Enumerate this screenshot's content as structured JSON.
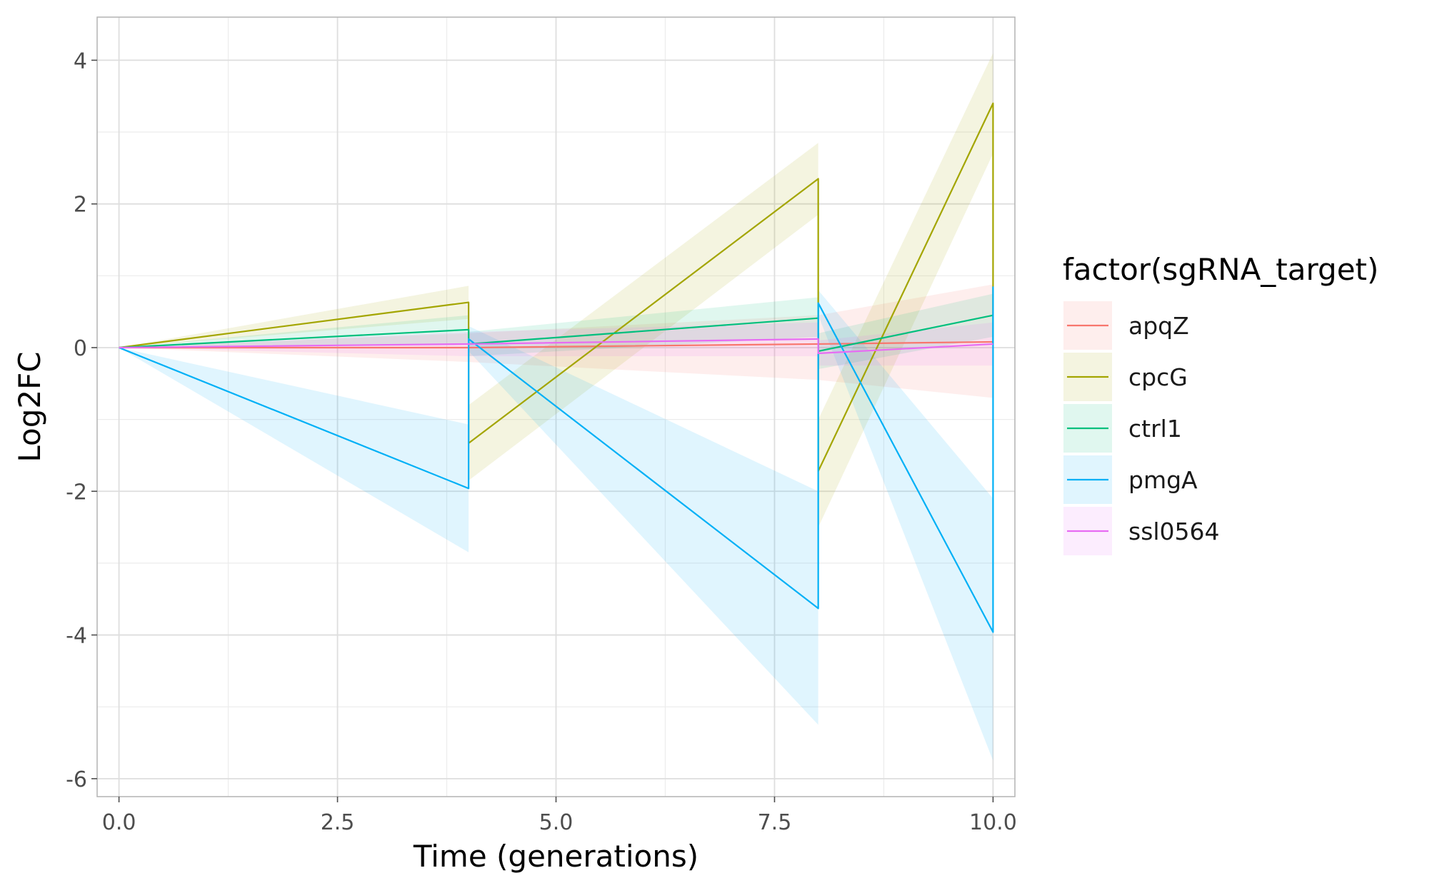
{
  "chart_data": {
    "type": "line",
    "title": "",
    "xlabel": "Time (generations)",
    "ylabel": "Log2FC",
    "xlim": [
      -0.25,
      10.25
    ],
    "ylim": [
      -6.25,
      4.6
    ],
    "x_ticks": [
      0.0,
      2.5,
      5.0,
      7.5,
      10.0
    ],
    "x_tick_labels": [
      "0.0",
      "2.5",
      "5.0",
      "7.5",
      "10.0"
    ],
    "y_ticks": [
      -6,
      -4,
      -2,
      0,
      2,
      4
    ],
    "y_tick_labels": [
      "-6",
      "-4",
      "-2",
      "0",
      "2",
      "4"
    ],
    "grid": true,
    "legend_title": "factor(sgRNA_target)",
    "legend_position": "right",
    "series": [
      {
        "name": "apqZ",
        "color": "#F8766D",
        "points": [
          [
            0,
            0
          ],
          [
            4,
            0.0
          ],
          [
            4,
            0.0
          ],
          [
            8,
            0.05
          ],
          [
            8,
            0.05
          ],
          [
            10,
            0.08
          ],
          [
            10,
            0.08
          ]
        ],
        "band": [
          [
            0,
            0,
            0
          ],
          [
            4,
            -0.2,
            0.2
          ],
          [
            4,
            -0.2,
            0.2
          ],
          [
            8,
            -0.45,
            0.45
          ],
          [
            8,
            -0.45,
            0.45
          ],
          [
            10,
            -0.7,
            0.88
          ],
          [
            10,
            -0.7,
            0.88
          ]
        ]
      },
      {
        "name": "cpcG",
        "color": "#A3A500",
        "points": [
          [
            0,
            0
          ],
          [
            4,
            0.63
          ],
          [
            4,
            -1.33
          ],
          [
            8,
            2.35
          ],
          [
            8,
            -1.72
          ],
          [
            10,
            3.4
          ],
          [
            10,
            0.45
          ]
        ],
        "band": [
          [
            0,
            0,
            0
          ],
          [
            4,
            0.4,
            0.86
          ],
          [
            4,
            -1.85,
            -0.8
          ],
          [
            8,
            1.85,
            2.85
          ],
          [
            8,
            -2.5,
            -1.0
          ],
          [
            10,
            2.7,
            4.1
          ],
          [
            10,
            0.1,
            0.8
          ]
        ]
      },
      {
        "name": "ctrl1",
        "color": "#00BF7D",
        "points": [
          [
            0,
            0
          ],
          [
            4,
            0.25
          ],
          [
            4,
            0.05
          ],
          [
            8,
            0.41
          ],
          [
            8,
            -0.05
          ],
          [
            10,
            0.45
          ],
          [
            10,
            0.05
          ]
        ],
        "band": [
          [
            0,
            0,
            0
          ],
          [
            4,
            0.05,
            0.45
          ],
          [
            4,
            -0.12,
            0.22
          ],
          [
            8,
            0.15,
            0.7
          ],
          [
            8,
            -0.3,
            0.2
          ],
          [
            10,
            0.15,
            0.75
          ],
          [
            10,
            -0.15,
            0.25
          ]
        ]
      },
      {
        "name": "pmgA",
        "color": "#00B0F6",
        "points": [
          [
            0,
            0
          ],
          [
            4,
            -1.96
          ],
          [
            4,
            0.12
          ],
          [
            8,
            -3.63
          ],
          [
            8,
            0.62
          ],
          [
            10,
            -3.96
          ],
          [
            10,
            0.85
          ]
        ],
        "band": [
          [
            0,
            0,
            0
          ],
          [
            4,
            -2.85,
            -1.07
          ],
          [
            4,
            -0.05,
            0.3
          ],
          [
            8,
            -5.25,
            -2.0
          ],
          [
            8,
            0.45,
            0.8
          ],
          [
            10,
            -5.75,
            -2.1
          ],
          [
            10,
            0.65,
            1.05
          ]
        ]
      },
      {
        "name": "ssl0564",
        "color": "#E76BF3",
        "points": [
          [
            0,
            0
          ],
          [
            4,
            0.05
          ],
          [
            4,
            0.05
          ],
          [
            8,
            0.12
          ],
          [
            8,
            -0.08
          ],
          [
            10,
            0.05
          ],
          [
            10,
            0.05
          ]
        ],
        "band": [
          [
            0,
            0,
            0
          ],
          [
            4,
            -0.12,
            0.22
          ],
          [
            4,
            -0.12,
            0.22
          ],
          [
            8,
            -0.12,
            0.35
          ],
          [
            8,
            -0.25,
            0.1
          ],
          [
            10,
            -0.25,
            0.35
          ],
          [
            10,
            -0.25,
            0.35
          ]
        ]
      }
    ]
  }
}
